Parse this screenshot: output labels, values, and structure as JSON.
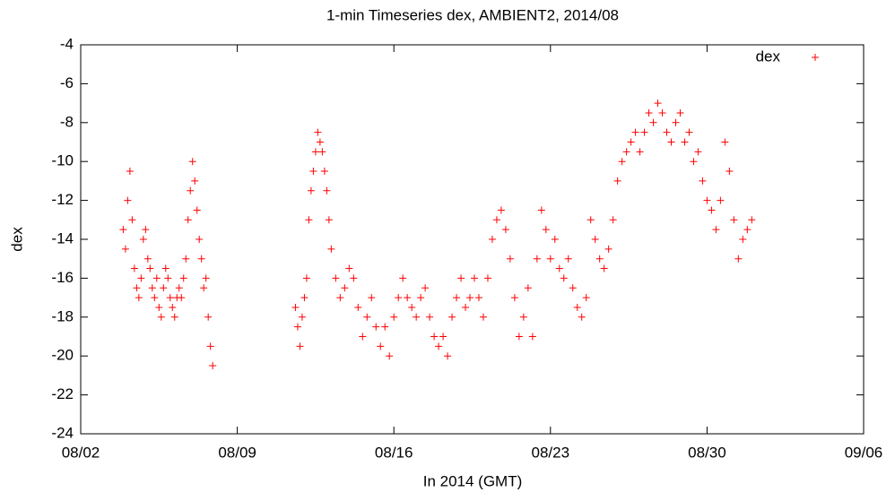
{
  "chart_data": {
    "type": "scatter",
    "title": "1-min Timeseries dex, AMBIENT2, 2014/08",
    "x_label": "In 2014 (GMT)",
    "y_label": "dex",
    "legend": "top-right",
    "grid": false,
    "xlim": [
      2,
      37
    ],
    "xticks": [
      {
        "value": 2,
        "label": "08/02"
      },
      {
        "value": 9,
        "label": "08/09"
      },
      {
        "value": 16,
        "label": "08/16"
      },
      {
        "value": 23,
        "label": "08/23"
      },
      {
        "value": 30,
        "label": "08/30"
      },
      {
        "value": 37,
        "label": "09/06"
      }
    ],
    "ylim": [
      -24,
      -4
    ],
    "yticks": [
      -24,
      -22,
      -20,
      -18,
      -16,
      -14,
      -12,
      -10,
      -8,
      -6,
      -4
    ],
    "series": [
      {
        "name": "dex",
        "color": "#ff0000",
        "x": [
          3.9,
          4.0,
          4.1,
          4.2,
          4.3,
          4.4,
          4.5,
          4.6,
          4.7,
          4.8,
          4.9,
          5.0,
          5.1,
          5.2,
          5.3,
          5.4,
          5.5,
          5.6,
          5.7,
          5.8,
          5.9,
          6.0,
          6.1,
          6.2,
          6.3,
          6.4,
          6.5,
          6.6,
          6.7,
          6.8,
          6.9,
          7.0,
          7.1,
          7.2,
          7.3,
          7.4,
          7.5,
          7.6,
          7.7,
          7.8,
          7.9,
          11.6,
          11.7,
          11.8,
          11.9,
          12.0,
          12.1,
          12.2,
          12.3,
          12.4,
          12.5,
          12.6,
          12.7,
          12.8,
          12.9,
          13.0,
          13.1,
          13.2,
          13.4,
          13.6,
          13.8,
          14.0,
          14.2,
          14.4,
          14.6,
          14.8,
          15.0,
          15.2,
          15.4,
          15.6,
          15.8,
          16.0,
          16.2,
          16.4,
          16.6,
          16.8,
          17.0,
          17.2,
          17.4,
          17.6,
          17.8,
          18.0,
          18.2,
          18.4,
          18.6,
          18.8,
          19.0,
          19.2,
          19.4,
          19.6,
          19.8,
          20.0,
          20.2,
          20.4,
          20.6,
          20.8,
          21.0,
          21.2,
          21.4,
          21.6,
          21.8,
          22.0,
          22.2,
          22.4,
          22.6,
          22.8,
          23.0,
          23.2,
          23.4,
          23.6,
          23.8,
          24.0,
          24.2,
          24.4,
          24.6,
          24.8,
          25.0,
          25.2,
          25.4,
          25.6,
          25.8,
          26.0,
          26.2,
          26.4,
          26.6,
          26.8,
          27.0,
          27.2,
          27.4,
          27.6,
          27.8,
          28.0,
          28.2,
          28.4,
          28.6,
          28.8,
          29.0,
          29.2,
          29.4,
          29.6,
          29.8,
          30.0,
          30.2,
          30.4,
          30.6,
          30.8,
          31.0,
          31.2,
          31.4,
          31.6,
          31.8,
          32.0
        ],
        "values": [
          -13.5,
          -14.5,
          -12,
          -10.5,
          -13,
          -15.5,
          -16.5,
          -17,
          -16,
          -14,
          -13.5,
          -15,
          -15.5,
          -16.5,
          -17,
          -16,
          -17.5,
          -18,
          -16.5,
          -15.5,
          -16,
          -17,
          -17.5,
          -18,
          -17,
          -16.5,
          -17,
          -16,
          -15,
          -13,
          -11.5,
          -10,
          -11,
          -12.5,
          -14,
          -15,
          -16.5,
          -16,
          -18,
          -19.5,
          -20.5,
          -17.5,
          -18.5,
          -19.5,
          -18,
          -17,
          -16,
          -13,
          -11.5,
          -10.5,
          -9.5,
          -8.5,
          -9,
          -9.5,
          -10.5,
          -11.5,
          -13,
          -14.5,
          -16,
          -17,
          -16.5,
          -15.5,
          -16,
          -17.5,
          -19,
          -18,
          -17,
          -18.5,
          -19.5,
          -18.5,
          -20,
          -18,
          -17,
          -16,
          -17,
          -17.5,
          -18,
          -17,
          -16.5,
          -18,
          -19,
          -19.5,
          -19,
          -20,
          -18,
          -17,
          -16,
          -17.5,
          -17,
          -16,
          -17,
          -18,
          -16,
          -14,
          -13,
          -12.5,
          -13.5,
          -15,
          -17,
          -19,
          -18,
          -16.5,
          -19,
          -15,
          -12.5,
          -13.5,
          -15,
          -14,
          -15.5,
          -16,
          -15,
          -16.5,
          -17.5,
          -18,
          -17,
          -13,
          -14,
          -15,
          -15.5,
          -14.5,
          -13,
          -11,
          -10,
          -9.5,
          -9,
          -8.5,
          -9.5,
          -8.5,
          -7.5,
          -8,
          -7,
          -7.5,
          -8.5,
          -9,
          -8,
          -7.5,
          -9,
          -8.5,
          -10,
          -9.5,
          -11,
          -12,
          -12.5,
          -13.5,
          -12,
          -9,
          -10.5,
          -13,
          -15,
          -14,
          -13.5,
          -13
        ]
      }
    ]
  }
}
